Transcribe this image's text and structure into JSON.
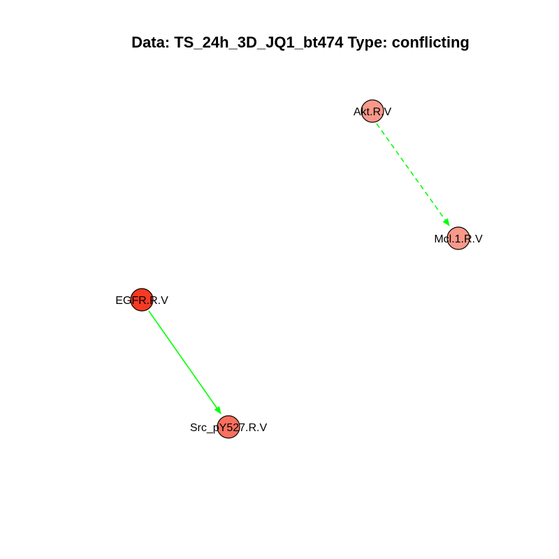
{
  "title": "Data: TS_24h_3D_JQ1_bt474 Type: conflicting",
  "graph": {
    "nodes": [
      {
        "id": "akt",
        "label": "Akt.R.V",
        "color": "#f9998a"
      },
      {
        "id": "mcl1",
        "label": "Mcl.1.R.V",
        "color": "#f9998a"
      },
      {
        "id": "egfr",
        "label": "EGFR.R.V",
        "color": "#f73a22"
      },
      {
        "id": "src",
        "label": "Src_pY527.R.V",
        "color": "#f9705f"
      }
    ],
    "edges": [
      {
        "from": "akt",
        "to": "mcl1",
        "style": "dashed",
        "color": "#00ff00"
      },
      {
        "from": "egfr",
        "to": "src",
        "style": "solid",
        "color": "#00ff00"
      }
    ]
  }
}
